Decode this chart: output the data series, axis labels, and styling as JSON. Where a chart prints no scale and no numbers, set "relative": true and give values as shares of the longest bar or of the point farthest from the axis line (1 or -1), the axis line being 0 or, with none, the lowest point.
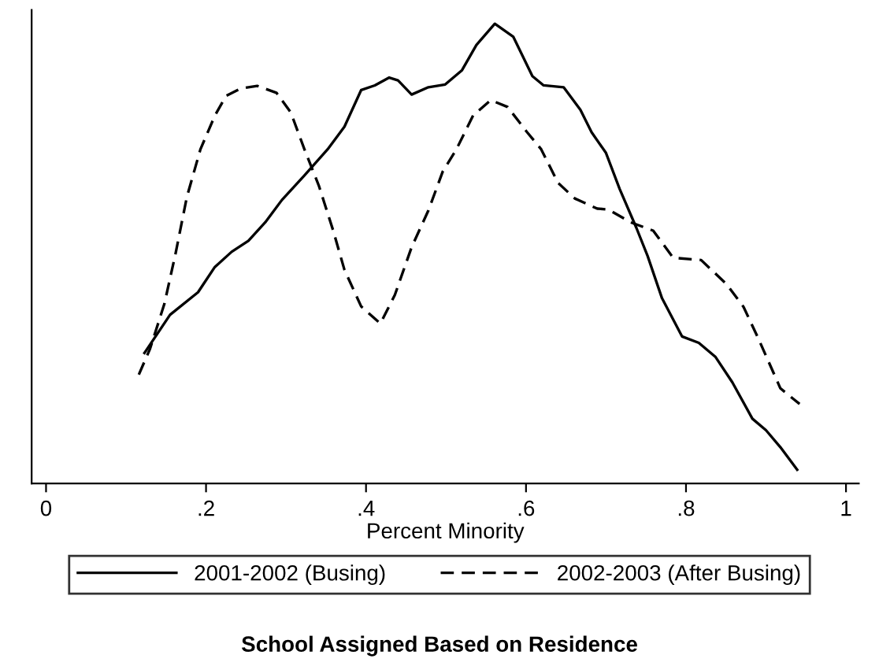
{
  "chart_data": {
    "type": "line",
    "title": "School Assigned Based on Residence",
    "xlabel": "Percent Minority",
    "relative": true,
    "xlim": [
      -0.018,
      1.016
    ],
    "xticks": [
      0,
      {
        "value": 0.2,
        "label": ".2"
      },
      {
        "value": 0.4,
        "label": ".4"
      },
      {
        "value": 0.6,
        "label": ".6"
      },
      {
        "value": 0.8,
        "label": ".8"
      },
      1
    ],
    "grid": false,
    "legend": "bottom",
    "marker": "none",
    "series": [
      {
        "name": "2001-2002 (Busing)",
        "color": "#000000",
        "line_style": "solid",
        "x": [
          0.123,
          0.155,
          0.19,
          0.211,
          0.232,
          0.253,
          0.274,
          0.295,
          0.323,
          0.352,
          0.373,
          0.394,
          0.411,
          0.429,
          0.44,
          0.457,
          0.478,
          0.499,
          0.52,
          0.538,
          0.561,
          0.584,
          0.608,
          0.622,
          0.647,
          0.668,
          0.682,
          0.7,
          0.717,
          0.738,
          0.752,
          0.77,
          0.795,
          0.816,
          0.837,
          0.858,
          0.883,
          0.9,
          0.918,
          0.939
        ],
        "values": [
          0.284,
          0.367,
          0.416,
          0.471,
          0.504,
          0.528,
          0.568,
          0.617,
          0.67,
          0.727,
          0.776,
          0.856,
          0.866,
          0.883,
          0.877,
          0.846,
          0.862,
          0.868,
          0.899,
          0.954,
          1.0,
          0.972,
          0.886,
          0.866,
          0.862,
          0.813,
          0.764,
          0.719,
          0.641,
          0.556,
          0.495,
          0.403,
          0.32,
          0.306,
          0.275,
          0.22,
          0.141,
          0.116,
          0.079,
          0.03
        ]
      },
      {
        "name": "2002-2003 (After Busing)",
        "color": "#000000",
        "line_style": "dashed",
        "x": [
          0.116,
          0.13,
          0.148,
          0.162,
          0.176,
          0.193,
          0.211,
          0.225,
          0.243,
          0.264,
          0.288,
          0.306,
          0.323,
          0.341,
          0.359,
          0.373,
          0.394,
          0.418,
          0.436,
          0.457,
          0.478,
          0.496,
          0.513,
          0.534,
          0.556,
          0.577,
          0.601,
          0.619,
          0.64,
          0.661,
          0.689,
          0.703,
          0.731,
          0.759,
          0.784,
          0.819,
          0.851,
          0.872,
          0.89,
          0.918,
          0.942
        ],
        "values": [
          0.237,
          0.293,
          0.391,
          0.501,
          0.623,
          0.727,
          0.8,
          0.843,
          0.859,
          0.865,
          0.85,
          0.807,
          0.727,
          0.648,
          0.55,
          0.465,
          0.385,
          0.348,
          0.41,
          0.514,
          0.594,
          0.679,
          0.727,
          0.801,
          0.834,
          0.819,
          0.765,
          0.727,
          0.654,
          0.62,
          0.598,
          0.596,
          0.568,
          0.55,
          0.491,
          0.486,
          0.433,
          0.384,
          0.317,
          0.207,
          0.173
        ]
      }
    ]
  }
}
